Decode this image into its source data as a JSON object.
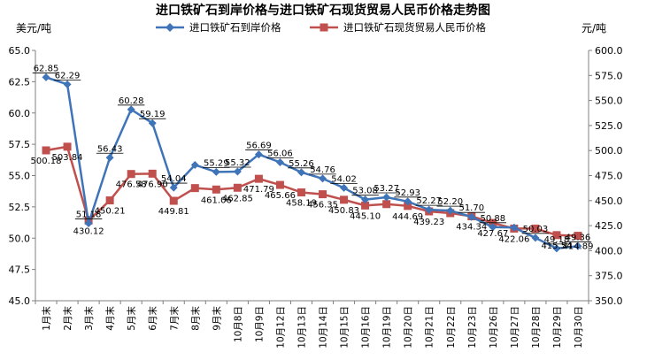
{
  "chart_data": {
    "type": "line",
    "title": "进口铁矿石到岸价格与进口铁矿石现货贸易人民币价格走势图",
    "ylabel": "美元/吨",
    "y2label": "元/吨",
    "categories": [
      "1月末",
      "2月末",
      "3月末",
      "4月末",
      "5月末",
      "6月末",
      "7月末",
      "8月末",
      "9月末",
      "10月8日",
      "10月9日",
      "10月12日",
      "10月13日",
      "10月14日",
      "10月15日",
      "10月16日",
      "10月19日",
      "10月20日",
      "10月21日",
      "10月22日",
      "10月23日",
      "10月26日",
      "10月27日",
      "10月28日",
      "10月29日",
      "10月30日"
    ],
    "ylim": [
      45.0,
      65.0
    ],
    "y_ticks": [
      "45.0",
      "47.5",
      "50.0",
      "52.5",
      "55.0",
      "57.5",
      "60.0",
      "62.5",
      "65.0"
    ],
    "y2lim": [
      350.0,
      600.0
    ],
    "y2_ticks": [
      "350.0",
      "375.0",
      "400.0",
      "425.0",
      "450.0",
      "475.0",
      "500.0",
      "525.0",
      "550.0",
      "575.0",
      "600.0"
    ],
    "grid": false,
    "legend_position": "top-center",
    "series": [
      {
        "name": "进口铁矿石到岸价格",
        "axis": "left",
        "color": "#3f74b8",
        "marker": "diamond",
        "values": [
          62.85,
          62.29,
          51.18,
          56.43,
          60.28,
          59.19,
          54.04,
          55.85,
          55.29,
          55.32,
          56.69,
          56.06,
          55.26,
          54.76,
          54.02,
          53.08,
          53.27,
          52.93,
          52.27,
          52.2,
          51.7,
          50.88,
          50.85,
          50.03,
          49.18,
          49.36
        ],
        "labels": [
          "62.85",
          "62.29",
          "51.18",
          "56.43",
          "60.28",
          "59.19",
          "54.04",
          "",
          "55.29",
          "55.32",
          "56.69",
          "56.06",
          "55.26",
          "54.76",
          "54.02",
          "53.08",
          "53.27",
          "52.93",
          "52.27",
          "52.20",
          "51.70",
          "50.88",
          "",
          "50.03",
          "49.18",
          "49.36"
        ]
      },
      {
        "name": "进口铁矿石现货贸易人民币价格",
        "axis": "right",
        "color": "#c0504d",
        "marker": "square",
        "values": [
          500.18,
          503.84,
          430.12,
          450.21,
          476.58,
          476.9,
          449.81,
          462.5,
          461.06,
          462.85,
          471.79,
          465.66,
          458.19,
          456.35,
          450.83,
          445.1,
          446.5,
          444.69,
          439.23,
          437.5,
          434.34,
          427.67,
          422.06,
          422.06,
          415.54,
          414.89
        ],
        "labels": [
          "500.18",
          "503.84",
          "430.12",
          "450.21",
          "476.58",
          "476.90",
          "449.81",
          "",
          "461.06",
          "462.85",
          "471.79",
          "465.66",
          "458.19",
          "456.35",
          "450.83",
          "445.10",
          "",
          "444.69",
          "439.23",
          "",
          "434.34",
          "427.67",
          "422.06",
          "",
          "415.54",
          "414.89"
        ]
      }
    ]
  }
}
